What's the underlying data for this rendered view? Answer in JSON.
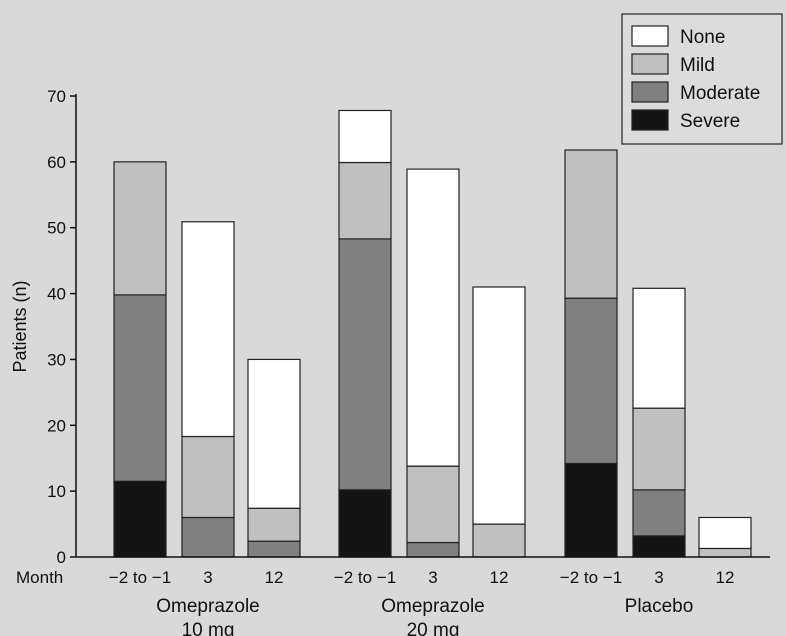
{
  "chart_data": {
    "type": "bar",
    "stacked": true,
    "ylabel": "Patients (n)",
    "xlabel": "Month",
    "ylim": [
      0,
      70
    ],
    "yticks": [
      0,
      10,
      20,
      30,
      40,
      50,
      60,
      70
    ],
    "grid": false,
    "legend_position": "top-right",
    "groups": [
      {
        "name_line1": "Omeprazole",
        "name_line2": "10 mg",
        "months": [
          "−2 to −1",
          "3",
          "12"
        ]
      },
      {
        "name_line1": "Omeprazole",
        "name_line2": "20 mg",
        "months": [
          "−2 to −1",
          "3",
          "12"
        ]
      },
      {
        "name_line1": "Placebo",
        "name_line2": "",
        "months": [
          "−2 to −1",
          "3",
          "12"
        ]
      }
    ],
    "series": [
      {
        "name": "Severe",
        "color": "#141414",
        "values": [
          11.5,
          0,
          0,
          10.2,
          0,
          0,
          14.2,
          3.2,
          0
        ]
      },
      {
        "name": "Moderate",
        "color": "#808080",
        "values": [
          28.3,
          6.0,
          2.4,
          38.1,
          2.2,
          0,
          25.1,
          7.0,
          0
        ]
      },
      {
        "name": "Mild",
        "color": "#c0c0c0",
        "values": [
          20.2,
          12.3,
          5.0,
          11.6,
          11.6,
          5.0,
          22.5,
          12.4,
          1.3
        ]
      },
      {
        "name": "None",
        "color": "#ffffff",
        "values": [
          0,
          32.6,
          22.6,
          7.9,
          45.1,
          36.0,
          0,
          18.2,
          4.7
        ]
      }
    ]
  }
}
